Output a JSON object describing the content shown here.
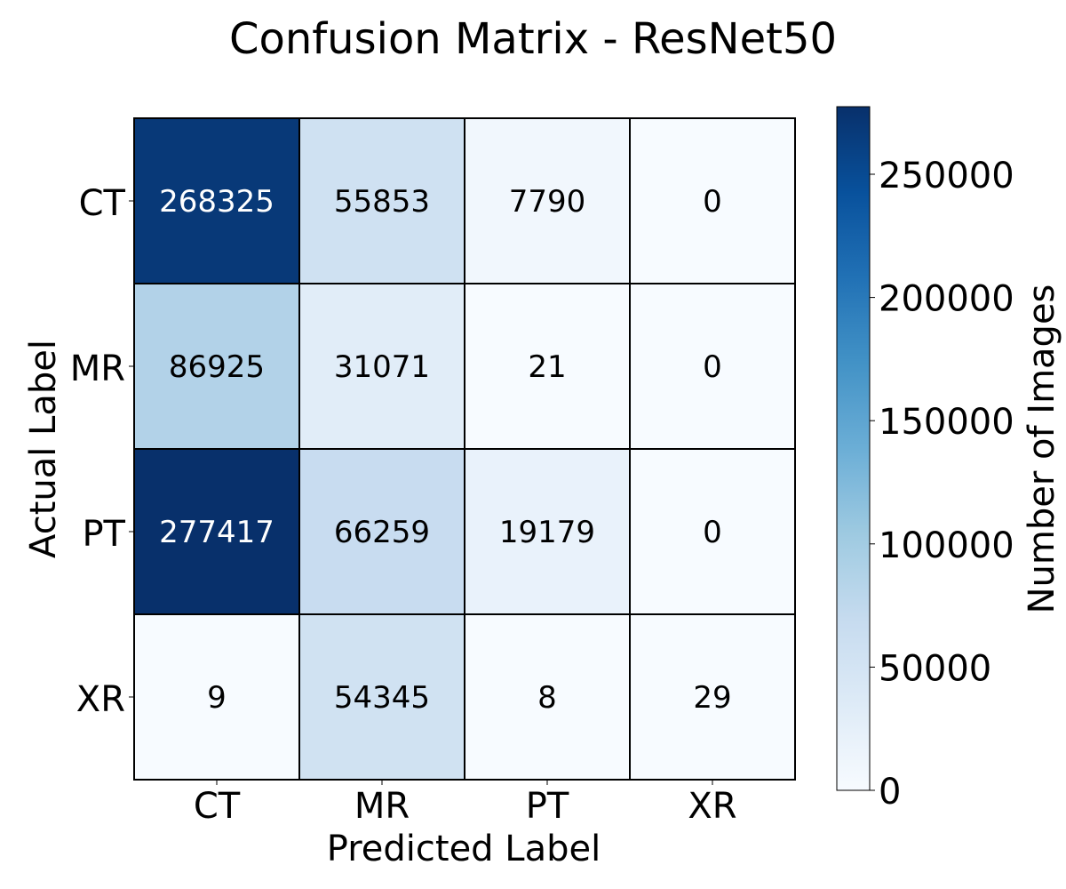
{
  "chart_data": {
    "type": "heatmap",
    "title": "Confusion Matrix - ResNet50",
    "xlabel": "Predicted Label",
    "ylabel": "Actual Label",
    "x_categories": [
      "CT",
      "MR",
      "PT",
      "XR"
    ],
    "y_categories": [
      "CT",
      "MR",
      "PT",
      "XR"
    ],
    "values": [
      [
        268325,
        55853,
        7790,
        0
      ],
      [
        86925,
        31071,
        21,
        0
      ],
      [
        277417,
        66259,
        19179,
        0
      ],
      [
        9,
        54345,
        8,
        29
      ]
    ],
    "colorbar": {
      "label": "Number of Images",
      "min": 0,
      "max": 277417,
      "ticks": [
        0,
        50000,
        100000,
        150000,
        200000,
        250000
      ]
    },
    "colormap": "Blues",
    "colors": {
      "low": "#f7fbff",
      "high": "#08306b",
      "gridline": "#000000"
    }
  }
}
